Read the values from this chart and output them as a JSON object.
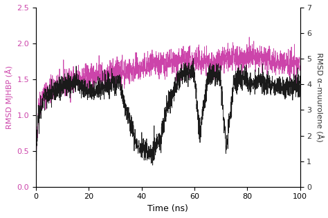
{
  "title": "",
  "xlabel": "Time (ns)",
  "ylabel_left": "RMSD MJHBP (Å)",
  "ylabel_right": "RMSD α–muurolene (Å)",
  "ylabel_left_color": "#cc44aa",
  "ylabel_right_color": "#333333",
  "xlim": [
    0,
    100
  ],
  "ylim_left": [
    0.0,
    2.5
  ],
  "ylim_right": [
    0,
    7
  ],
  "xticks": [
    0,
    20,
    40,
    60,
    80,
    100
  ],
  "yticks_left": [
    0.0,
    0.5,
    1.0,
    1.5,
    2.0,
    2.5
  ],
  "yticks_right": [
    0,
    1,
    2,
    3,
    4,
    5,
    6,
    7
  ],
  "line1_color": "#cc44aa",
  "line2_color": "#1a1a1a",
  "line1_lw": 0.6,
  "line2_lw": 0.6,
  "seed": 42,
  "n_points": 2000
}
